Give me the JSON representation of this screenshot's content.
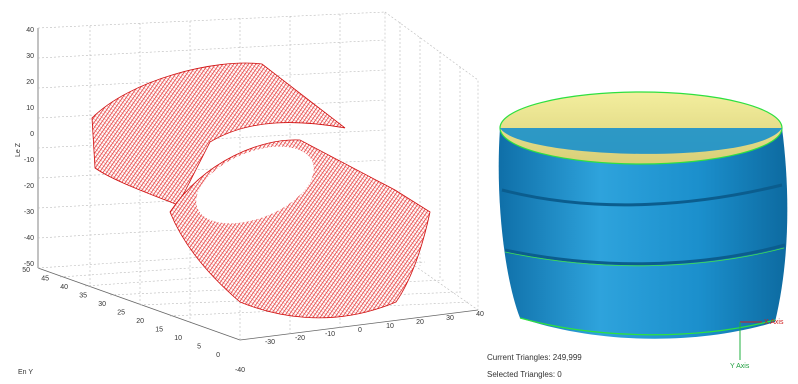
{
  "plot_3d": {
    "z_axis_label": "Le Z",
    "y_axis_label": "En Y",
    "z_ticks": [
      "40",
      "30",
      "20",
      "10",
      "0",
      "-10",
      "-20",
      "-30",
      "-40",
      "-50"
    ],
    "y_ticks": [
      "50",
      "45",
      "40",
      "35",
      "30",
      "25",
      "20",
      "15",
      "10",
      "5",
      "0"
    ],
    "x_ticks": [
      "-40",
      "-30",
      "-20",
      "-10",
      "0",
      "10",
      "20",
      "30",
      "40"
    ]
  },
  "render": {
    "status": [
      "Current Triangles: 249,999",
      "Selected Triangles: 0"
    ],
    "x_axis_label": "X Axis",
    "y_axis_label": "Y Axis"
  }
}
